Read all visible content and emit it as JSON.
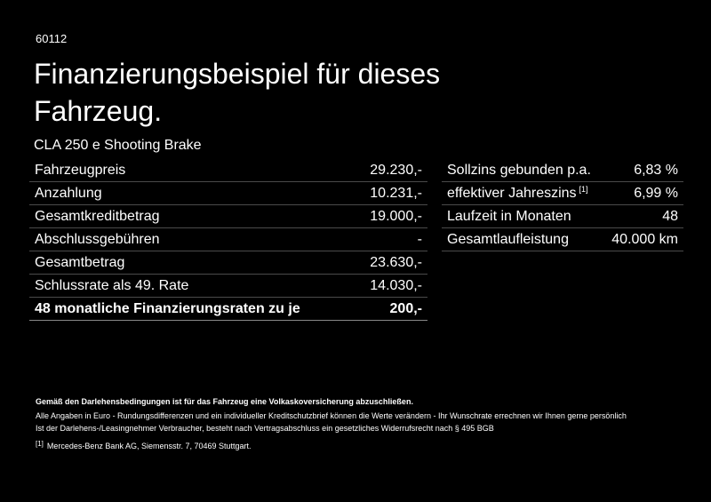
{
  "header": {
    "id": "60112",
    "title_lines": [
      "Finanzierungsbeispiel für dieses",
      "Fahrzeug."
    ],
    "model": "CLA 250 e Shooting Brake"
  },
  "left_table": {
    "rows": [
      [
        "Fahrzeugpreis",
        "29.230,-"
      ],
      [
        "Anzahlung",
        "10.231,-"
      ],
      [
        "Gesamtkreditbetrag",
        "19.000,-"
      ],
      [
        "Abschlussgebühren",
        "-"
      ],
      [
        "Gesamtbetrag",
        "23.630,-"
      ],
      [
        "Schlussrate als 49. Rate",
        "14.030,-"
      ],
      [
        "48 monatliche Finanzierungsraten zu je",
        "200,-"
      ]
    ]
  },
  "right_table": {
    "rows": [
      [
        "Sollzins gebunden p.a.",
        "6,83 %"
      ],
      [
        "effektiver Jahreszins",
        "6,99 %"
      ],
      [
        "Laufzeit in Monaten",
        "48"
      ],
      [
        "Gesamtlaufleistung",
        "40.000 km"
      ]
    ],
    "note_marker": "[1]"
  },
  "footer": {
    "bold_line": "Gemäß den Darlehensbedingungen ist für das Fahrzeug eine Volkaskoversicherung abzuschließen.",
    "lines": [
      "Alle Angaben in Euro - Rundungsdifferenzen und ein individueller Kreditschutzbrief können die Werte verändern - Ihr Wunschrate errechnen wir Ihnen gerne persönlich",
      "Ist der Darlehens-/Leasingnehmer Verbraucher, besteht nach Vertragsabschluss ein gesetzliches Widerrufsrecht nach § 495 BGB"
    ],
    "note_marker": "[1]",
    "note_text": "Mercedes-Benz Bank AG, Siemensstr. 7, 70469 Stuttgart."
  }
}
